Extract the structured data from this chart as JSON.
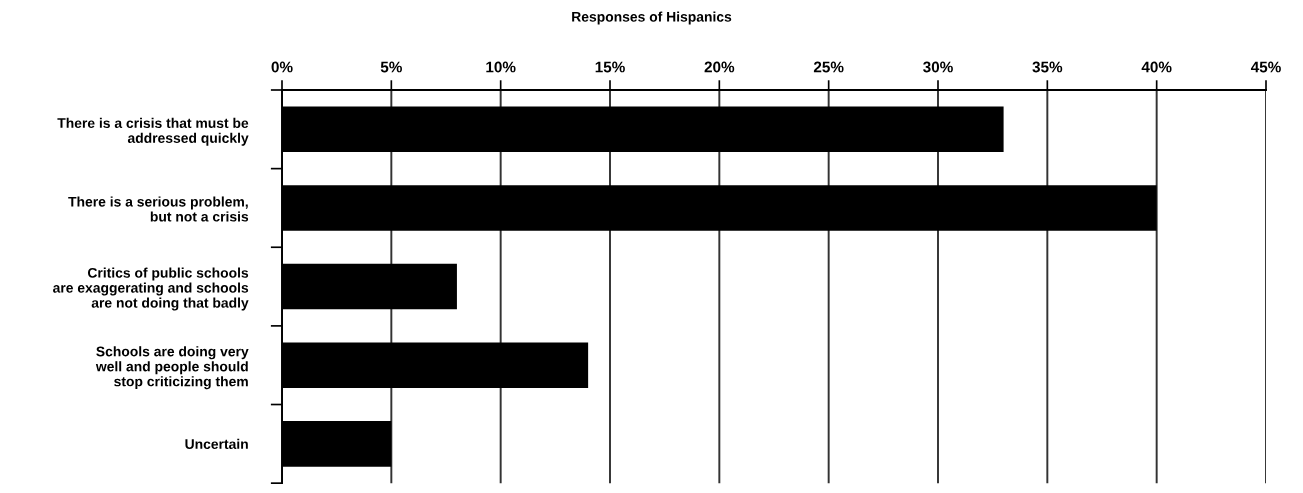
{
  "chart_data": {
    "type": "bar",
    "orientation": "horizontal",
    "title": "Responses of Hispanics",
    "categories": [
      "There is a crisis that must be\naddressed quickly",
      "There is a serious problem,\nbut not a crisis",
      "Critics of public schools\nare exaggerating and schools\nare not doing that badly",
      "Schools are doing very\nwell and people should\nstop criticizing them",
      "Uncertain"
    ],
    "values": [
      33,
      40,
      8,
      14,
      5
    ],
    "color": "#000000",
    "xlim": [
      0,
      45
    ],
    "xticks": [
      {
        "value": 0,
        "label": "0%"
      },
      {
        "value": 5,
        "label": "5%"
      },
      {
        "value": 10,
        "label": "10%"
      },
      {
        "value": 15,
        "label": "15%"
      },
      {
        "value": 20,
        "label": "20%"
      },
      {
        "value": 25,
        "label": "25%"
      },
      {
        "value": 30,
        "label": "30%"
      },
      {
        "value": 35,
        "label": "35%"
      },
      {
        "value": 40,
        "label": "40%"
      },
      {
        "value": 45,
        "label": "45%"
      }
    ],
    "grid": "x"
  }
}
